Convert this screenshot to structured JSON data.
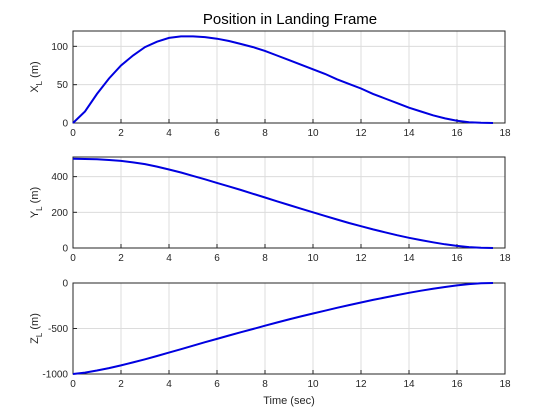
{
  "title": "Position in Landing Frame",
  "chart_data": [
    {
      "type": "line",
      "title": "Position in Landing Frame",
      "ylabel_main": "X",
      "ylabel_sub": "L",
      "ylabel_unit": " (m)",
      "xlabel": "",
      "xlim": [
        0,
        18
      ],
      "ylim": [
        0,
        120
      ],
      "xticks": [
        0,
        2,
        4,
        6,
        8,
        10,
        12,
        14,
        16,
        18
      ],
      "yticks": [
        0,
        50,
        100
      ],
      "grid": true,
      "series": [
        {
          "color": "#0000e0",
          "x": [
            0,
            0.5,
            1,
            1.5,
            2,
            2.5,
            3,
            3.5,
            4,
            4.5,
            5,
            5.5,
            6,
            6.5,
            7,
            7.5,
            8,
            8.5,
            9,
            9.5,
            10,
            10.5,
            11,
            11.5,
            12,
            12.5,
            13,
            13.5,
            14,
            14.5,
            15,
            15.5,
            16,
            16.5,
            17,
            17.5
          ],
          "y": [
            0,
            15,
            38,
            58,
            75,
            88,
            99,
            106,
            111,
            113,
            113,
            112,
            110,
            107,
            103,
            99,
            94,
            88,
            82,
            76,
            70,
            64,
            57,
            51,
            45,
            38,
            32,
            26,
            20,
            15,
            10,
            6,
            3,
            1,
            0.3,
            0
          ]
        }
      ]
    },
    {
      "type": "line",
      "ylabel_main": "Y",
      "ylabel_sub": "L",
      "ylabel_unit": " (m)",
      "xlabel": "",
      "xlim": [
        0,
        18
      ],
      "ylim": [
        0,
        510
      ],
      "xticks": [
        0,
        2,
        4,
        6,
        8,
        10,
        12,
        14,
        16,
        18
      ],
      "yticks": [
        0,
        200,
        400
      ],
      "grid": true,
      "series": [
        {
          "color": "#0000e0",
          "x": [
            0,
            0.5,
            1,
            1.5,
            2,
            2.5,
            3,
            3.5,
            4,
            4.5,
            5,
            5.5,
            6,
            6.5,
            7,
            7.5,
            8,
            8.5,
            9,
            9.5,
            10,
            10.5,
            11,
            11.5,
            12,
            12.5,
            13,
            13.5,
            14,
            14.5,
            15,
            15.5,
            16,
            16.5,
            17,
            17.5
          ],
          "y": [
            500,
            499,
            497,
            493,
            488,
            480,
            470,
            456,
            440,
            423,
            404,
            385,
            365,
            345,
            325,
            304,
            283,
            262,
            241,
            220,
            200,
            180,
            160,
            140,
            122,
            104,
            88,
            72,
            57,
            44,
            32,
            21,
            12,
            5,
            1,
            0
          ]
        }
      ]
    },
    {
      "type": "line",
      "ylabel_main": "Z",
      "ylabel_sub": "L",
      "ylabel_unit": " (m)",
      "xlabel": "Time (sec)",
      "xlim": [
        0,
        18
      ],
      "ylim": [
        -1000,
        0
      ],
      "xticks": [
        0,
        2,
        4,
        6,
        8,
        10,
        12,
        14,
        16,
        18
      ],
      "yticks": [
        -1000,
        -500,
        0
      ],
      "grid": true,
      "series": [
        {
          "color": "#0000e0",
          "x": [
            0,
            0.5,
            1,
            1.5,
            2,
            2.5,
            3,
            3.5,
            4,
            4.5,
            5,
            5.5,
            6,
            6.5,
            7,
            7.5,
            8,
            8.5,
            9,
            9.5,
            10,
            10.5,
            11,
            11.5,
            12,
            12.5,
            13,
            13.5,
            14,
            14.5,
            15,
            15.5,
            16,
            16.5,
            17,
            17.5
          ],
          "y": [
            -1000,
            -985,
            -962,
            -935,
            -905,
            -872,
            -838,
            -802,
            -765,
            -727,
            -689,
            -651,
            -614,
            -577,
            -541,
            -505,
            -469,
            -434,
            -400,
            -367,
            -335,
            -304,
            -273,
            -243,
            -214,
            -186,
            -159,
            -133,
            -108,
            -85,
            -64,
            -44,
            -26,
            -12,
            -3,
            0
          ]
        }
      ]
    }
  ]
}
